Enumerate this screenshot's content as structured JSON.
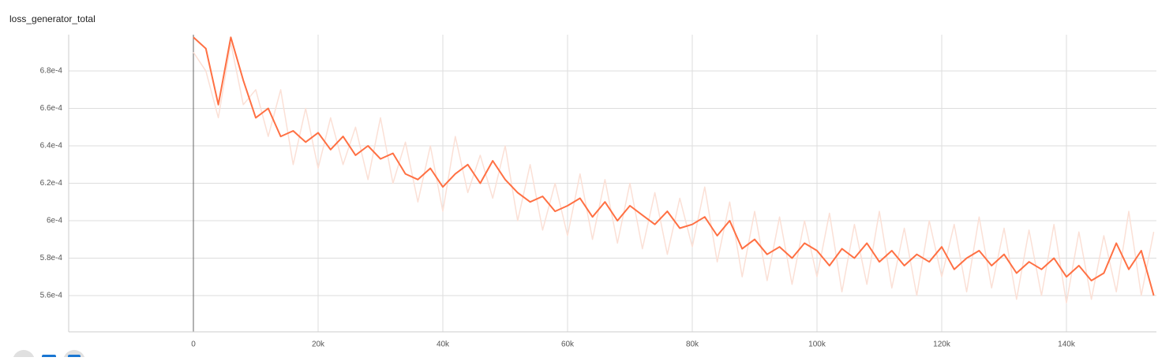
{
  "chart_data": {
    "type": "line",
    "title": "loss_generator_total",
    "x": [
      0,
      2000,
      4000,
      6000,
      8000,
      10000,
      12000,
      14000,
      16000,
      18000,
      20000,
      22000,
      24000,
      26000,
      28000,
      30000,
      32000,
      34000,
      36000,
      38000,
      40000,
      42000,
      44000,
      46000,
      48000,
      50000,
      52000,
      54000,
      56000,
      58000,
      60000,
      62000,
      64000,
      66000,
      68000,
      70000,
      72000,
      74000,
      76000,
      78000,
      80000,
      82000,
      84000,
      86000,
      88000,
      90000,
      92000,
      94000,
      96000,
      98000,
      100000,
      102000,
      104000,
      106000,
      108000,
      110000,
      112000,
      114000,
      116000,
      118000,
      120000,
      122000,
      124000,
      126000,
      128000,
      130000,
      132000,
      134000,
      136000,
      138000,
      140000,
      142000,
      144000,
      146000,
      148000,
      150000,
      152000,
      154000
    ],
    "series": [
      {
        "color": "#fbe0d6",
        "values": [
          0.00069,
          0.00068,
          0.000655,
          0.000695,
          0.000662,
          0.00067,
          0.000645,
          0.00067,
          0.00063,
          0.00066,
          0.000628,
          0.000655,
          0.00063,
          0.00065,
          0.000622,
          0.000655,
          0.00062,
          0.000642,
          0.00061,
          0.00064,
          0.000605,
          0.000645,
          0.000615,
          0.000635,
          0.000612,
          0.00064,
          0.0006,
          0.00063,
          0.000595,
          0.00062,
          0.000592,
          0.000625,
          0.00059,
          0.000622,
          0.000588,
          0.00062,
          0.000585,
          0.000615,
          0.000582,
          0.000612,
          0.000586,
          0.000618,
          0.000578,
          0.00061,
          0.00057,
          0.000605,
          0.000568,
          0.000602,
          0.000566,
          0.0006,
          0.00057,
          0.000604,
          0.000562,
          0.000598,
          0.000566,
          0.000605,
          0.000564,
          0.000596,
          0.00056,
          0.0006,
          0.00057,
          0.000598,
          0.000562,
          0.000602,
          0.000564,
          0.000596,
          0.000558,
          0.000595,
          0.00056,
          0.000598,
          0.000556,
          0.000594,
          0.000558,
          0.000592,
          0.000562,
          0.000605,
          0.00056,
          0.000594
        ]
      },
      {
        "color": "#ff7043",
        "values": [
          0.000698,
          0.000692,
          0.000662,
          0.000698,
          0.000675,
          0.000655,
          0.00066,
          0.000645,
          0.000648,
          0.000642,
          0.000647,
          0.000638,
          0.000645,
          0.000635,
          0.00064,
          0.000633,
          0.000636,
          0.000625,
          0.000622,
          0.000628,
          0.000618,
          0.000625,
          0.00063,
          0.00062,
          0.000632,
          0.000622,
          0.000615,
          0.00061,
          0.000613,
          0.000605,
          0.000608,
          0.000612,
          0.000602,
          0.00061,
          0.0006,
          0.000608,
          0.000603,
          0.000598,
          0.000605,
          0.000596,
          0.000598,
          0.000602,
          0.000592,
          0.0006,
          0.000585,
          0.00059,
          0.000582,
          0.000586,
          0.00058,
          0.000588,
          0.000584,
          0.000576,
          0.000585,
          0.00058,
          0.000588,
          0.000578,
          0.000584,
          0.000576,
          0.000582,
          0.000578,
          0.000586,
          0.000574,
          0.00058,
          0.000584,
          0.000576,
          0.000582,
          0.000572,
          0.000578,
          0.000574,
          0.00058,
          0.00057,
          0.000576,
          0.000568,
          0.000572,
          0.000588,
          0.000574,
          0.000584,
          0.00056
        ]
      }
    ],
    "xlim": [
      -20000,
      154430
    ],
    "ylim": [
      0.0005406,
      0.0006994
    ],
    "xticks": [
      0,
      {
        "value": 20000,
        "label": "20k"
      },
      {
        "value": 40000,
        "label": "40k"
      },
      {
        "value": 60000,
        "label": "60k"
      },
      {
        "value": 80000,
        "label": "80k"
      },
      {
        "value": 100000,
        "label": "100k"
      },
      {
        "value": 120000,
        "label": "120k"
      },
      {
        "value": 140000,
        "label": "140k"
      }
    ],
    "yticks": [
      {
        "value": 0.00056,
        "label": "5.6e-4"
      },
      {
        "value": 0.00058,
        "label": "5.8e-4"
      },
      {
        "value": 0.0006,
        "label": "6e-4"
      },
      {
        "value": 0.00062,
        "label": "6.2e-4"
      },
      {
        "value": 0.00064,
        "label": "6.4e-4"
      },
      {
        "value": 0.00066,
        "label": "6.6e-4"
      },
      {
        "value": 0.00068,
        "label": "6.8e-4"
      }
    ],
    "grid": true
  }
}
